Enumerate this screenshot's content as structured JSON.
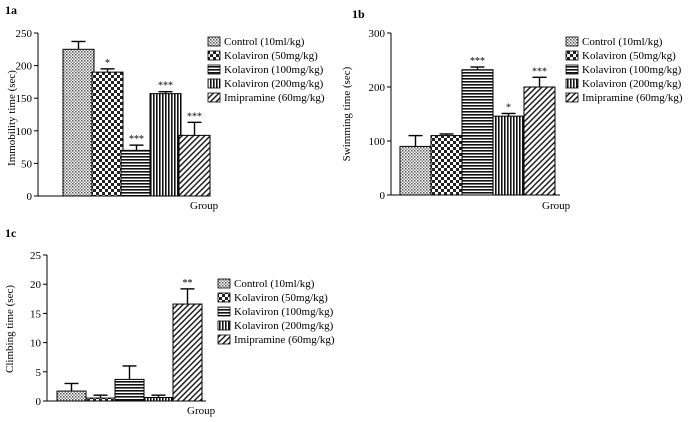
{
  "legend_labels": [
    "Control (10ml/kg)",
    "Kolaviron (50mg/kg)",
    "Kolaviron (100mg/kg)",
    "Kolaviron (200mg/kg)",
    "Imipramine (60mg/kg)"
  ],
  "patterns": [
    "dots",
    "checker",
    "hstripes",
    "vstripes",
    "diagonal"
  ],
  "chart_data": [
    {
      "type": "bar",
      "panel_label": "1a",
      "xlabel": "Group",
      "ylabel": "Immobility time (sec)",
      "ylim": [
        0,
        250
      ],
      "yticks": [
        "0",
        "50",
        "100",
        "150",
        "200",
        "250"
      ],
      "series": [
        {
          "name": "Control (10ml/kg)",
          "value": 225,
          "error": 12,
          "sig": ""
        },
        {
          "name": "Kolaviron (50mg/kg)",
          "value": 190,
          "error": 5,
          "sig": "*"
        },
        {
          "name": "Kolaviron (100mg/kg)",
          "value": 70,
          "error": 8,
          "sig": "***"
        },
        {
          "name": "Kolaviron (200mg/kg)",
          "value": 157,
          "error": 3,
          "sig": "***"
        },
        {
          "name": "Imipramine (60mg/kg)",
          "value": 93,
          "error": 20,
          "sig": "***"
        }
      ]
    },
    {
      "type": "bar",
      "panel_label": "1b",
      "xlabel": "Group",
      "ylabel": "Swimming time (sec)",
      "ylim": [
        0,
        300
      ],
      "yticks": [
        "0",
        "100",
        "200",
        "300"
      ],
      "series": [
        {
          "name": "Control (10ml/kg)",
          "value": 90,
          "error": 20,
          "sig": ""
        },
        {
          "name": "Kolaviron (50mg/kg)",
          "value": 110,
          "error": 3,
          "sig": ""
        },
        {
          "name": "Kolaviron (100mg/kg)",
          "value": 232,
          "error": 5,
          "sig": "***"
        },
        {
          "name": "Kolaviron (200mg/kg)",
          "value": 146,
          "error": 5,
          "sig": "*"
        },
        {
          "name": "Imipramine (60mg/kg)",
          "value": 200,
          "error": 18,
          "sig": "***"
        }
      ]
    },
    {
      "type": "bar",
      "panel_label": "1c",
      "xlabel": "Group",
      "ylabel": "Climbing time (sec)",
      "ylim": [
        0,
        25
      ],
      "yticks": [
        "0",
        "5",
        "10",
        "15",
        "20",
        "25"
      ],
      "series": [
        {
          "name": "Control (10ml/kg)",
          "value": 1.7,
          "error": 1.3,
          "sig": ""
        },
        {
          "name": "Kolaviron (50mg/kg)",
          "value": 0.5,
          "error": 0.5,
          "sig": ""
        },
        {
          "name": "Kolaviron (100mg/kg)",
          "value": 3.7,
          "error": 2.3,
          "sig": ""
        },
        {
          "name": "Kolaviron (200mg/kg)",
          "value": 0.6,
          "error": 0.4,
          "sig": ""
        },
        {
          "name": "Imipramine (60mg/kg)",
          "value": 16.6,
          "error": 2.6,
          "sig": "**"
        }
      ]
    }
  ]
}
